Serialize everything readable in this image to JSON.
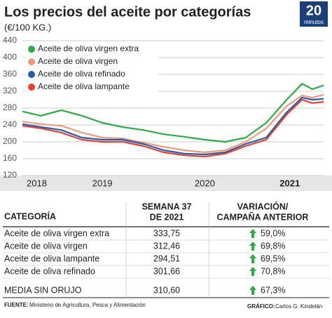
{
  "chart_data": {
    "type": "line",
    "title": "Los precios del aceite por categorías",
    "subtitle": "(€/100 KG.)",
    "x": [
      2018.72,
      2018.9,
      2019.1,
      2019.3,
      2019.5,
      2019.7,
      2019.9,
      2020.1,
      2020.3,
      2020.5,
      2020.7,
      2020.9,
      2021.1,
      2021.3,
      2021.45,
      2021.55,
      2021.66
    ],
    "series": [
      {
        "name": "Aceite de oliva virgen extra",
        "color": "#2eaa46",
        "values": [
          272,
          262,
          275,
          262,
          245,
          235,
          228,
          218,
          212,
          205,
          200,
          210,
          245,
          300,
          338,
          325,
          334
        ]
      },
      {
        "name": "Aceite de oliva virgen",
        "color": "#ef9a80",
        "values": [
          248,
          242,
          238,
          222,
          210,
          208,
          198,
          188,
          180,
          175,
          180,
          200,
          232,
          285,
          310,
          305,
          312
        ]
      },
      {
        "name": "Aceite de oliva refinado",
        "color": "#2a5aa8",
        "values": [
          242,
          235,
          228,
          210,
          205,
          205,
          195,
          180,
          172,
          170,
          175,
          195,
          210,
          270,
          305,
          300,
          302
        ]
      },
      {
        "name": "Aceite de oliva lampante",
        "color": "#e5412e",
        "values": [
          238,
          232,
          222,
          205,
          200,
          200,
          190,
          175,
          168,
          165,
          172,
          190,
          205,
          265,
          300,
          292,
          295
        ]
      }
    ],
    "xlim": [
      2018.72,
      2021.66
    ],
    "xticks": [
      {
        "value": 2018.86,
        "label": "2018"
      },
      {
        "value": 2019.5,
        "label": "2019"
      },
      {
        "value": 2020.5,
        "label": "2020"
      },
      {
        "value": 2021.33,
        "label": "2021"
      }
    ],
    "ylim": [
      120,
      440
    ],
    "yticks": [
      120,
      160,
      200,
      240,
      280,
      320,
      360,
      400,
      440
    ],
    "grid": true,
    "legend": "upper-left"
  },
  "logo": {
    "number": "20",
    "word": "minutos"
  },
  "table": {
    "header": [
      "CATEGORÍA",
      [
        "SEMANA 37",
        "DE 2021"
      ],
      [
        "VARIACIÓN/",
        "CAMPAÑA ANTERIOR"
      ]
    ],
    "rows": [
      [
        "Aceite de oliva virgen extra",
        "333,75",
        "59,0%"
      ],
      [
        "Aceite de oliva virgen",
        "312,46",
        "69,8%"
      ],
      [
        "Aceite de oliva lampante",
        "294,51",
        "69,5%"
      ],
      [
        "Aceite de oliva refinado",
        "301,66",
        "70,8%"
      ],
      [
        "MEDIA SIN ORUJO",
        "310,60",
        "67,3%"
      ]
    ]
  },
  "footer": {
    "source_label": "FUENTE:",
    "source": "Ministerio de Agricultura, Pesca y Alimentación",
    "credit_label": "GRÁFICO:",
    "credit": "Carlos G. Kindelán"
  }
}
